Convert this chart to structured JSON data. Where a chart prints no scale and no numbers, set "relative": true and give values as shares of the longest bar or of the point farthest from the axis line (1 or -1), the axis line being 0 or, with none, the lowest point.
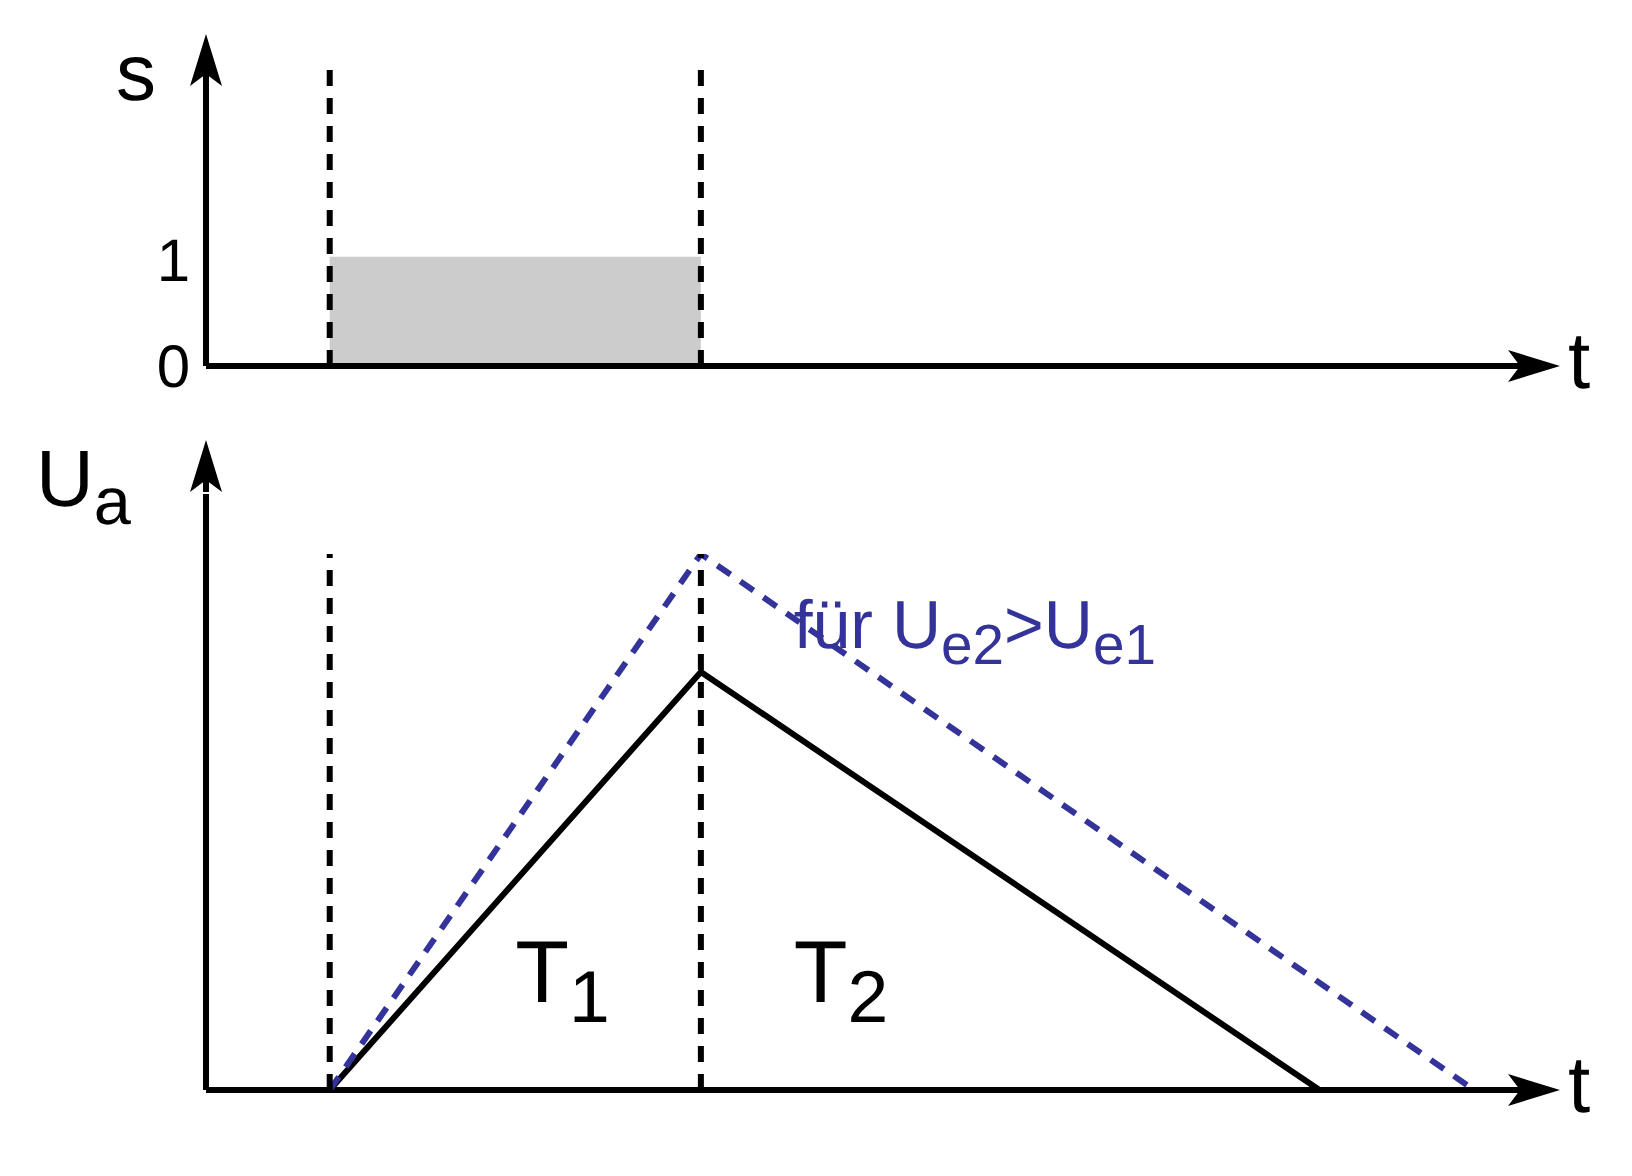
{
  "chart_data": [
    {
      "type": "area",
      "ylabel": "s",
      "xlabel": "t",
      "categories": [
        null,
        null,
        null,
        null,
        null,
        null,
        null,
        null,
        null,
        null,
        null,
        null,
        null,
        null,
        null,
        null,
        null,
        null,
        null,
        null,
        null,
        null,
        null,
        null,
        null,
        null,
        null,
        null,
        null,
        null,
        null,
        null,
        null,
        null,
        null,
        null,
        null,
        null,
        null,
        null,
        null,
        null,
        null,
        null
      ],
      "series": [
        {
          "color": "#cccccc",
          "values": [
            null,
            null,
            null,
            null,
            1,
            1,
            1,
            1,
            1,
            1,
            1,
            1,
            1,
            1,
            1,
            1,
            1,
            null,
            null,
            null,
            null,
            null,
            null,
            null,
            null,
            null,
            null,
            null,
            null,
            null,
            null,
            null,
            null,
            null,
            null,
            null,
            null,
            null,
            null,
            null,
            null,
            null,
            null,
            null
          ]
        }
      ],
      "ylim": [
        0,
        2.9
      ],
      "yticks": [
        0,
        1
      ],
      "grid": false,
      "legend": false
    },
    {
      "type": "line",
      "relative": true,
      "ylabel": "U$_{a}$",
      "xlabel": "t",
      "categories": [
        null,
        null,
        null,
        null,
        null,
        null,
        null,
        null,
        null,
        null,
        null,
        null,
        null,
        null,
        null,
        null,
        null,
        null,
        null,
        null,
        null,
        null,
        null,
        null,
        null,
        null,
        null,
        null,
        null,
        null,
        null,
        null,
        null,
        null,
        null,
        null,
        null,
        null,
        null,
        null,
        null,
        null,
        null,
        null
      ],
      "series": [
        {
          "color": "#000000",
          "line_style": "solid",
          "values": [
            null,
            null,
            null,
            null,
            0,
            null,
            null,
            null,
            null,
            null,
            null,
            null,
            null,
            null,
            null,
            null,
            0.78,
            null,
            null,
            null,
            null,
            null,
            null,
            null,
            null,
            null,
            null,
            null,
            null,
            null,
            null,
            null,
            null,
            null,
            null,
            null,
            0,
            null,
            null,
            null,
            null,
            null,
            null,
            null
          ]
        },
        {
          "name": "für U$_{e2}$>U$_{e1}$",
          "color": "#333399",
          "line_style": "dashed",
          "values": [
            null,
            null,
            null,
            null,
            0,
            null,
            null,
            null,
            null,
            null,
            null,
            null,
            null,
            null,
            null,
            null,
            1,
            null,
            null,
            null,
            null,
            null,
            null,
            null,
            null,
            null,
            null,
            null,
            null,
            null,
            null,
            null,
            null,
            null,
            null,
            null,
            null,
            null,
            null,
            null,
            null,
            0,
            null,
            null
          ]
        }
      ],
      "marker": "none",
      "grid": false,
      "legend": false,
      "annotations": [
        "T$_{1}$",
        "T$_{2}$"
      ]
    }
  ]
}
